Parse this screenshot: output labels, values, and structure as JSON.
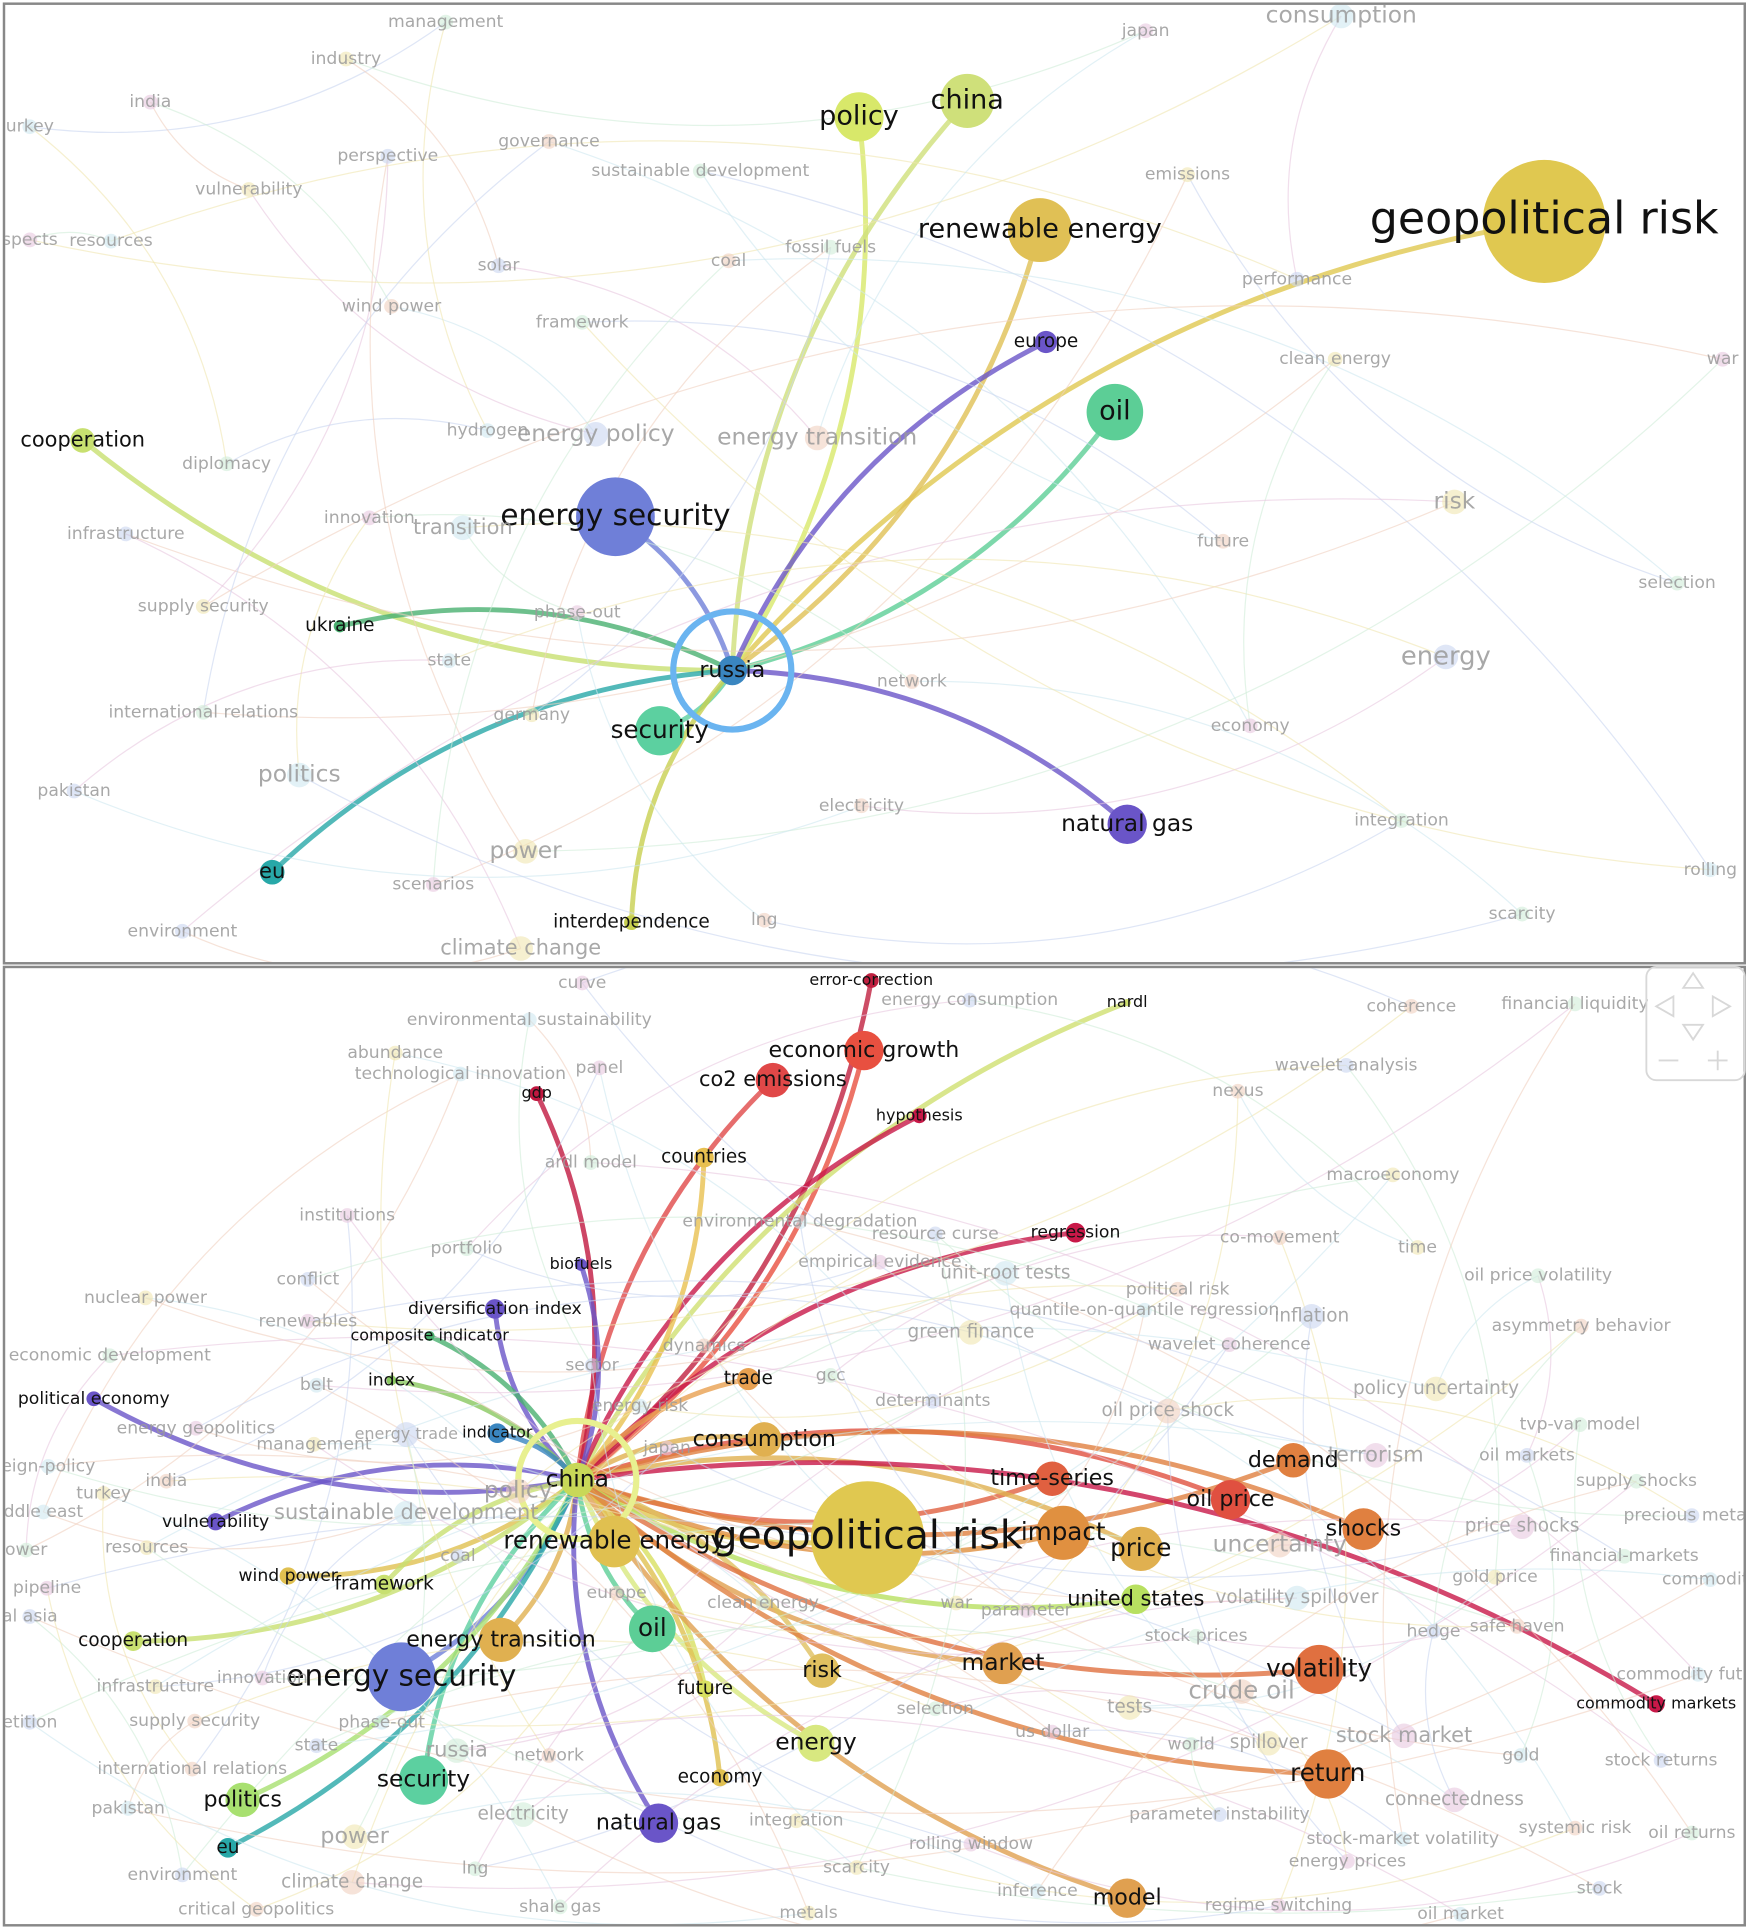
{
  "panels": [
    {
      "nodes": [
        "geopolitical risk",
        "energy security",
        "russia",
        "policy",
        "china",
        "renewable energy",
        "europe",
        "oil",
        "cooperation",
        "ukraine",
        "security",
        "eu",
        "natural gas",
        "interdependence",
        "management",
        "industry",
        "india",
        "urkey",
        "perspective",
        "governance",
        "sustainable development",
        "vulnerability",
        "spects",
        "resources",
        "solar",
        "coal",
        "fossil fuels",
        "emissions",
        "japan",
        "consumption",
        "performance",
        "wind power",
        "framework",
        "clean energy",
        "war",
        "hydrogen",
        "energy policy",
        "energy transition",
        "diplomacy",
        "risk",
        "innovation",
        "transition",
        "infrastructure",
        "future",
        "selection",
        "supply security",
        "phase-out",
        "state",
        "energy",
        "network",
        "international relations",
        "germany",
        "economy",
        "politics",
        "pakistan",
        "electricity",
        "integration",
        "power",
        "scenarios",
        "rolling",
        "environment",
        "lng",
        "scarcity",
        "climate change"
      ]
    },
    {
      "nodes": [
        "china",
        "geopolitical risk",
        "energy security",
        "economic growth",
        "co2 emissions",
        "error-correction",
        "nardl",
        "gdp",
        "hypothesis",
        "countries",
        "regression",
        "biofuels",
        "diversification index",
        "composite indicator",
        "political economy",
        "index",
        "trade",
        "indicator",
        "consumption",
        "time-series",
        "oil price",
        "demand",
        "shocks",
        "impact",
        "price",
        "vulnerability",
        "wind power",
        "framework",
        "renewable energy",
        "united states",
        "energy transition",
        "oil",
        "cooperation",
        "market",
        "risk",
        "volatility",
        "future",
        "energy",
        "economy",
        "return",
        "commodity markets",
        "security",
        "politics",
        "natural gas",
        "eu",
        "model",
        "curve",
        "environmental sustainability",
        "energy consumption",
        "coherence",
        "financial liquidity",
        "abundance",
        "panel",
        "technological innovation",
        "wavelet analysis",
        "nexus",
        "ardl model",
        "macroeconomy",
        "institutions",
        "environmental degradation",
        "resource curse",
        "co-movement",
        "portfolio",
        "time",
        "empirical evidence",
        "unit-root tests",
        "conflict",
        "political risk",
        "oil price volatility",
        "nuclear power",
        "renewables",
        "quantile-on-quantile regression",
        "inflation",
        "asymmetry behavior",
        "economic development",
        "green finance",
        "wavelet coherence",
        "belt",
        "sector",
        "dynamics",
        "gcc",
        "policy uncertainty",
        "energy geopolitics",
        "energy risk",
        "determinants",
        "oil price shock",
        "tvp-var model",
        "management",
        "japan",
        "eign-policy",
        "oil markets",
        "india",
        "supply shocks",
        "turkey",
        "terrorism",
        "ddle east",
        "precious metals",
        "policy",
        "ower",
        "resources",
        "price shocks",
        "sustainable development",
        "coal",
        "uncertainty",
        "financial-markets",
        "gold price",
        "pipeline",
        "commodity",
        "al asia",
        "europe",
        "clean energy",
        "war",
        "parameter",
        "volatility spillover",
        "hedge",
        "safe haven",
        "stock prices",
        "infrastructure",
        "innovation",
        "commodity futures",
        "etition",
        "supply security",
        "selection",
        "tests",
        "us dollar",
        "phase-out",
        "state",
        "network",
        "world",
        "spillover",
        "stock market",
        "gold",
        "stock returns",
        "international relations",
        "electricity",
        "integration",
        "connectedness",
        "pakistan",
        "parameter instability",
        "systemic risk",
        "oil returns",
        "power",
        "rolling window",
        "stock-market volatility",
        "environment",
        "climate change",
        "lng",
        "scarcity",
        "energy prices",
        "inference",
        "stock",
        "critical geopolitics",
        "shale gas",
        "metals",
        "regime switching",
        "oil market",
        "energy trade",
        "crude oil",
        "russia"
      ]
    }
  ]
}
